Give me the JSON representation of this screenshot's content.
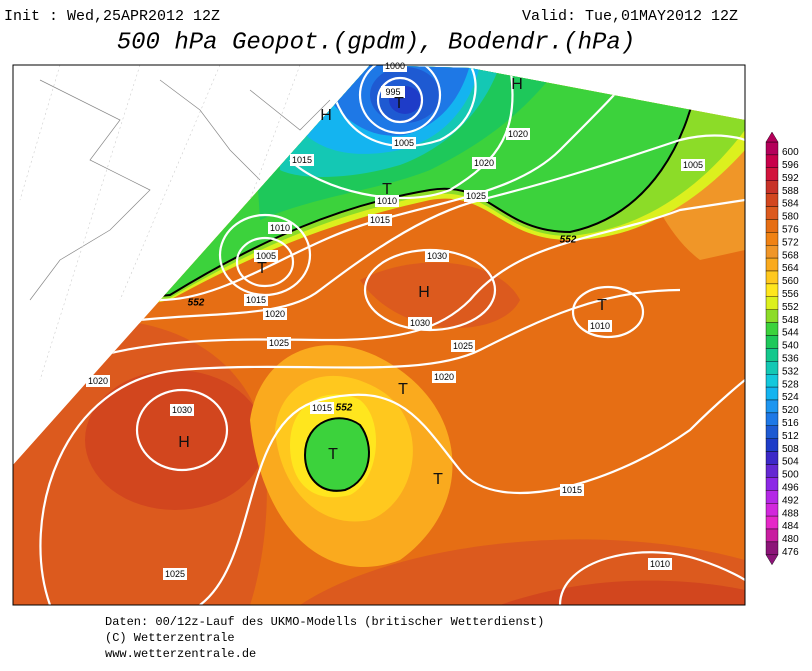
{
  "header": {
    "init": "Init : Wed,25APR2012 12Z",
    "valid": "Valid: Tue,01MAY2012 12Z",
    "title": "500 hPa Geopot.(gpdm), Bodendr.(hPa)"
  },
  "map": {
    "isobar_labels": [
      "1000",
      "995",
      "1005",
      "1015",
      "1010",
      "1015",
      "1020",
      "1020",
      "1025",
      "1005",
      "1010",
      "1005",
      "1015",
      "1020",
      "1025",
      "1030",
      "1030",
      "1025",
      "1020",
      "1010",
      "1020",
      "1030",
      "1015",
      "1015",
      "1010",
      "1025"
    ],
    "geopotential_labels": [
      "552",
      "552",
      "552"
    ],
    "centers": [
      "H",
      "T",
      "T",
      "H",
      "T",
      "H",
      "T",
      "T",
      "H",
      "T",
      "T"
    ]
  },
  "colorbar": {
    "levels": [
      {
        "label": "600",
        "color": "#b4005a"
      },
      {
        "label": "596",
        "color": "#c8004a"
      },
      {
        "label": "592",
        "color": "#d2143c"
      },
      {
        "label": "588",
        "color": "#c83228"
      },
      {
        "label": "584",
        "color": "#d2461e"
      },
      {
        "label": "580",
        "color": "#dc5a1e"
      },
      {
        "label": "576",
        "color": "#e66e14"
      },
      {
        "label": "572",
        "color": "#f08214"
      },
      {
        "label": "568",
        "color": "#f09628"
      },
      {
        "label": "564",
        "color": "#faaa1e"
      },
      {
        "label": "560",
        "color": "#ffc81e"
      },
      {
        "label": "556",
        "color": "#ffe61e"
      },
      {
        "label": "552",
        "color": "#dcf01e"
      },
      {
        "label": "548",
        "color": "#8cdc28"
      },
      {
        "label": "544",
        "color": "#3cd23c"
      },
      {
        "label": "540",
        "color": "#1ec85a"
      },
      {
        "label": "536",
        "color": "#14c88c"
      },
      {
        "label": "532",
        "color": "#14c8b4"
      },
      {
        "label": "528",
        "color": "#14c8dc"
      },
      {
        "label": "524",
        "color": "#14b4f0"
      },
      {
        "label": "520",
        "color": "#1e96f0"
      },
      {
        "label": "516",
        "color": "#1e78e6"
      },
      {
        "label": "512",
        "color": "#1e5ad2"
      },
      {
        "label": "508",
        "color": "#1e3cc8"
      },
      {
        "label": "504",
        "color": "#3c28c8"
      },
      {
        "label": "500",
        "color": "#6428d2"
      },
      {
        "label": "496",
        "color": "#8c28e6"
      },
      {
        "label": "492",
        "color": "#b428e6"
      },
      {
        "label": "488",
        "color": "#d228dc"
      },
      {
        "label": "484",
        "color": "#e628c8"
      },
      {
        "label": "480",
        "color": "#c81ea0"
      },
      {
        "label": "476",
        "color": "#8c1478"
      }
    ]
  },
  "footer": {
    "lines": [
      "Daten: 00/12z-Lauf des UKMO-Modells (britischer Wetterdienst)",
      "(C) Wetterzentrale",
      "www.wetterzentrale.de"
    ]
  }
}
